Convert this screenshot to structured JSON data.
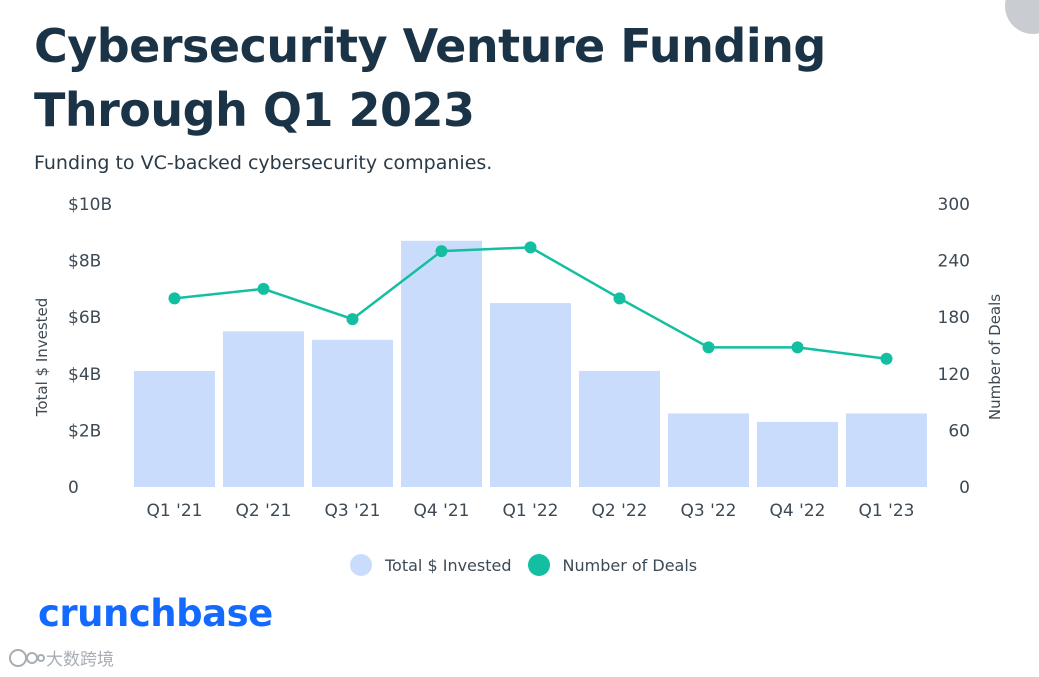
{
  "title": "Cybersecurity Venture Funding Through Q1 2023",
  "subtitle": "Funding to VC-backed cybersecurity companies.",
  "brand": "crunchbase",
  "watermark": "大数跨境",
  "colors": {
    "bars": "#cadcfc",
    "line": "#14bfa1",
    "title": "#1b3346",
    "brand": "#146aff"
  },
  "chart_data": {
    "type": "bar",
    "categories": [
      "Q1 '21",
      "Q2 '21",
      "Q3 '21",
      "Q4 '21",
      "Q1 '22",
      "Q2 '22",
      "Q3 '22",
      "Q4 '22",
      "Q1 '23"
    ],
    "series": [
      {
        "name": "Total $ Invested",
        "type": "bar",
        "axis": "left",
        "unit": "B",
        "values": [
          4.1,
          5.5,
          5.2,
          8.7,
          6.5,
          4.1,
          2.6,
          2.3,
          2.6
        ]
      },
      {
        "name": "Number of Deals",
        "type": "line",
        "axis": "right",
        "values": [
          200,
          210,
          178,
          250,
          254,
          200,
          148,
          148,
          136
        ]
      }
    ],
    "left_axis": {
      "title": "Total $ Invested",
      "range": [
        0,
        10
      ],
      "ticks": [
        "0",
        "$2B",
        "$4B",
        "$6B",
        "$8B",
        "$10B"
      ]
    },
    "right_axis": {
      "title": "Number of Deals",
      "range": [
        0,
        300
      ],
      "ticks": [
        "0",
        "60",
        "120",
        "180",
        "240",
        "300"
      ]
    },
    "legend": [
      "Total $ Invested",
      "Number of Deals"
    ],
    "legend_position": "bottom-center",
    "grid": false
  }
}
